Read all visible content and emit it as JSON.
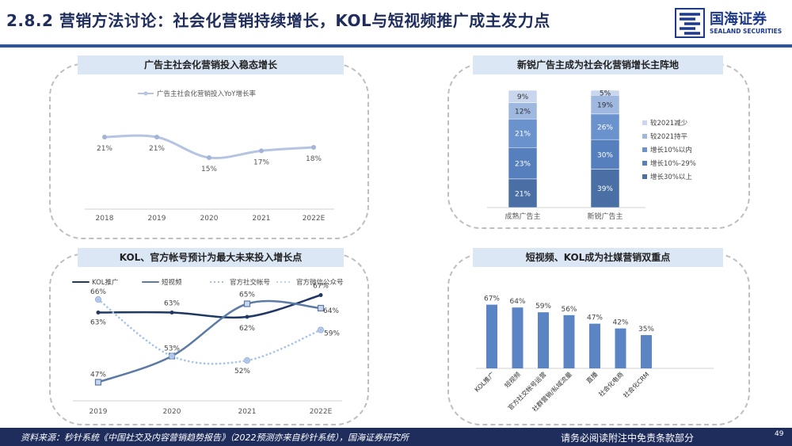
{
  "page": {
    "title": "2.8.2 营销方法讨论：社会化营销持续增长，KOL与短视频推广成主发力点",
    "logo_name": "国海证券",
    "logo_en": "SEALAND SECURITIES",
    "source": "资料来源：秒针系统《中国社交及内容营销趋势报告》（2022预测亦来自秒针系统），国海证券研究所",
    "disclaimer": "请务必阅读附注中免责条款部分",
    "page_number": "49"
  },
  "colors": {
    "navy": "#1f2d5c",
    "line1": "#b4c4e2",
    "kol": "#1f3864",
    "short_video": "#5b7aa6",
    "social": "#8eaad6",
    "wechat": "#a9c4ea",
    "bar_blue": "#5b84c4"
  },
  "chart_data": [
    {
      "type": "line",
      "title": "广告主社会化营销投入稳态增长",
      "categories": [
        "2018",
        "2019",
        "2020",
        "2021",
        "2022E"
      ],
      "series": [
        {
          "name": "广告主社会化营销投入YoY增长率",
          "values": [
            21,
            21,
            15,
            17,
            18
          ]
        }
      ],
      "labels": [
        "21%",
        "21%",
        "15%",
        "17%",
        "18%"
      ],
      "ylim": [
        0,
        30
      ],
      "legend": "top-left",
      "grid": false
    },
    {
      "type": "bar",
      "stacked": true,
      "title": "新锐广告主成为社会化营销增长主阵地",
      "categories": [
        "成熟广告主",
        "新锐广告主"
      ],
      "series": [
        {
          "name": "增长30%以上",
          "values": [
            21,
            39
          ],
          "labels": [
            "21%",
            "39%"
          ]
        },
        {
          "name": "增长10%-29%",
          "values": [
            23,
            30
          ],
          "labels": [
            "23%",
            "30%"
          ]
        },
        {
          "name": "增长10%以内",
          "values": [
            21,
            26
          ],
          "labels": [
            "21%",
            "26%"
          ]
        },
        {
          "name": "较2021持平",
          "values": [
            12,
            19
          ],
          "labels": [
            "12%",
            "19%"
          ]
        },
        {
          "name": "较2021减少",
          "values": [
            9,
            5
          ],
          "labels": [
            "9%",
            "5%"
          ]
        }
      ],
      "legend": "right"
    },
    {
      "type": "line",
      "title": "KOL、官方帐号预计为最大未来投入增长点",
      "categories": [
        "2019",
        "2020",
        "2021",
        "2022E"
      ],
      "series": [
        {
          "name": "KOL推广",
          "values": [
            63,
            63,
            62,
            67
          ],
          "labels": [
            "63%",
            "63%",
            "62%",
            "67%"
          ]
        },
        {
          "name": "短视频",
          "values": [
            47,
            53,
            65,
            64
          ],
          "labels": [
            "47%",
            "53%",
            "65%",
            "64%"
          ]
        },
        {
          "name": "官方社交帐号",
          "values": [
            66,
            53,
            52,
            59
          ],
          "labels": [
            "66%",
            "",
            "52%",
            "59%"
          ]
        },
        {
          "name": "官方微信公众号",
          "values": [
            66,
            53,
            52,
            59
          ],
          "labels": [
            "",
            "",
            "",
            ""
          ]
        }
      ],
      "ylim": [
        40,
        72
      ],
      "legend": "top",
      "grid": false
    },
    {
      "type": "bar",
      "title": "短视频、KOL成为社媒营销双重点",
      "categories": [
        "KOL推广",
        "短视频",
        "官方社交帐号运营",
        "社群营销/私域流量",
        "直播",
        "社会化电商",
        "社会化CRM"
      ],
      "values": [
        67,
        64,
        59,
        56,
        47,
        42,
        35
      ],
      "labels": [
        "67%",
        "64%",
        "59%",
        "56%",
        "47%",
        "42%",
        "35%"
      ],
      "ylim": [
        0,
        75
      ]
    }
  ]
}
